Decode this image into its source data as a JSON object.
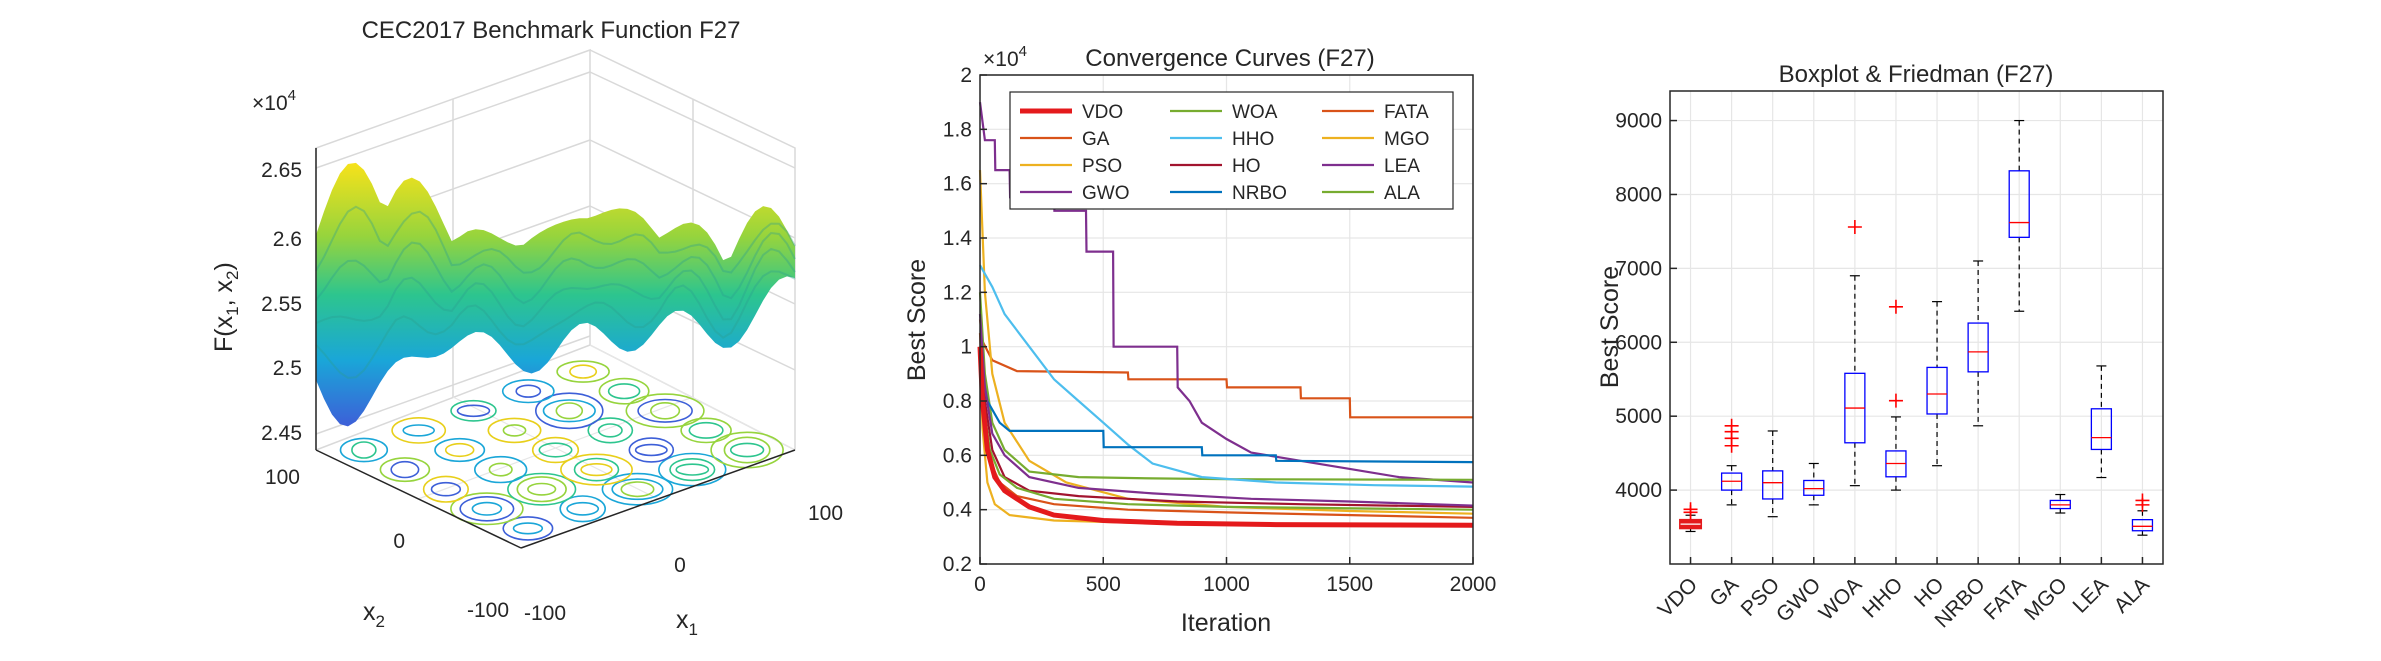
{
  "chart_data": [
    {
      "type": "surface3d",
      "title": "CEC2017 Benchmark Function F27",
      "zlabel_main": "F(x",
      "zlabel_sub1": "1",
      "zlabel_mid": ", x",
      "zlabel_sub2": "2",
      "zlabel_end": ")",
      "exponent_base": "×10",
      "exponent_power": "4",
      "z_ticks": [
        "2.45",
        "2.5",
        "2.55",
        "2.6",
        "2.65"
      ],
      "x2_ticks": [
        "100",
        "0",
        "-100"
      ],
      "x1_ticks": [
        "-100",
        "0",
        "100"
      ],
      "x1_label": "x",
      "x1_label_sub": "1",
      "x2_label": "x",
      "x2_label_sub": "2",
      "zlim": [
        2.45,
        2.65
      ],
      "xlim": [
        -100,
        100
      ]
    },
    {
      "type": "line",
      "title": "Convergence Curves (F27)",
      "xlabel": "Iteration",
      "ylabel": "Best Score",
      "exponent_base": "×10",
      "exponent_power": "4",
      "xlim": [
        0,
        2000
      ],
      "ylim": [
        0.2,
        2
      ],
      "x_ticks": [
        "0",
        "500",
        "1000",
        "1500",
        "2000"
      ],
      "y_ticks": [
        "0.2",
        "0.4",
        "0.6",
        "0.8",
        "1",
        "1.2",
        "1.4",
        "1.6",
        "1.8",
        "2"
      ],
      "series": [
        {
          "name": "VDO",
          "color": "#e41a1c",
          "points": [
            [
              0,
              1.0
            ],
            [
              10,
              0.8
            ],
            [
              30,
              0.62
            ],
            [
              60,
              0.52
            ],
            [
              100,
              0.47
            ],
            [
              200,
              0.41
            ],
            [
              300,
              0.38
            ],
            [
              500,
              0.36
            ],
            [
              800,
              0.35
            ],
            [
              1200,
              0.345
            ],
            [
              2000,
              0.343
            ]
          ]
        },
        {
          "name": "GA",
          "color": "#d95319",
          "points": [
            [
              0,
              1.1
            ],
            [
              10,
              1.02
            ],
            [
              50,
              0.95
            ],
            [
              150,
              0.91
            ],
            [
              600,
              0.905
            ],
            [
              602,
              0.88
            ],
            [
              1000,
              0.88
            ],
            [
              1002,
              0.85
            ],
            [
              1300,
              0.85
            ],
            [
              1302,
              0.81
            ],
            [
              1500,
              0.81
            ],
            [
              1502,
              0.74
            ],
            [
              2000,
              0.74
            ]
          ]
        },
        {
          "name": "PSO",
          "color": "#edb120",
          "points": [
            [
              0,
              1.65
            ],
            [
              20,
              1.2
            ],
            [
              50,
              0.9
            ],
            [
              100,
              0.72
            ],
            [
              200,
              0.58
            ],
            [
              350,
              0.5
            ],
            [
              600,
              0.44
            ],
            [
              1000,
              0.41
            ],
            [
              1500,
              0.395
            ],
            [
              2000,
              0.385
            ]
          ]
        },
        {
          "name": "GWO",
          "color": "#7e2f8e",
          "points": [
            [
              0,
              1.9
            ],
            [
              20,
              1.76
            ],
            [
              60,
              1.76
            ],
            [
              62,
              1.65
            ],
            [
              120,
              1.65
            ],
            [
              122,
              1.55
            ],
            [
              300,
              1.55
            ],
            [
              302,
              1.5
            ],
            [
              430,
              1.5
            ],
            [
              432,
              1.35
            ],
            [
              540,
              1.35
            ],
            [
              542,
              1.0
            ],
            [
              800,
              1.0
            ],
            [
              802,
              0.85
            ],
            [
              850,
              0.8
            ],
            [
              900,
              0.72
            ],
            [
              1000,
              0.66
            ],
            [
              1100,
              0.61
            ],
            [
              1300,
              0.58
            ],
            [
              1500,
              0.55
            ],
            [
              1700,
              0.52
            ],
            [
              2000,
              0.5
            ]
          ]
        },
        {
          "name": "WOA",
          "color": "#77ac30",
          "points": [
            [
              0,
              1.2
            ],
            [
              20,
              0.9
            ],
            [
              50,
              0.72
            ],
            [
              100,
              0.62
            ],
            [
              200,
              0.54
            ],
            [
              400,
              0.52
            ],
            [
              700,
              0.515
            ],
            [
              1000,
              0.512
            ],
            [
              2000,
              0.51
            ]
          ]
        },
        {
          "name": "HHO",
          "color": "#4dbeee",
          "points": [
            [
              0,
              1.3
            ],
            [
              50,
              1.22
            ],
            [
              100,
              1.12
            ],
            [
              200,
              1.0
            ],
            [
              300,
              0.88
            ],
            [
              400,
              0.8
            ],
            [
              500,
              0.72
            ],
            [
              600,
              0.64
            ],
            [
              700,
              0.57
            ],
            [
              900,
              0.52
            ],
            [
              1200,
              0.5
            ],
            [
              1600,
              0.49
            ],
            [
              2000,
              0.485
            ]
          ]
        },
        {
          "name": "HO",
          "color": "#a2142f",
          "points": [
            [
              0,
              1.0
            ],
            [
              20,
              0.8
            ],
            [
              50,
              0.62
            ],
            [
              100,
              0.52
            ],
            [
              200,
              0.47
            ],
            [
              400,
              0.45
            ],
            [
              800,
              0.43
            ],
            [
              1300,
              0.42
            ],
            [
              2000,
              0.41
            ]
          ]
        },
        {
          "name": "NRBO",
          "color": "#0072bd",
          "points": [
            [
              0,
              0.95
            ],
            [
              30,
              0.8
            ],
            [
              80,
              0.72
            ],
            [
              120,
              0.69
            ],
            [
              500,
              0.69
            ],
            [
              502,
              0.63
            ],
            [
              900,
              0.63
            ],
            [
              902,
              0.6
            ],
            [
              1200,
              0.6
            ],
            [
              1202,
              0.58
            ],
            [
              2000,
              0.575
            ]
          ]
        },
        {
          "name": "FATA",
          "color": "#d95319",
          "points": [
            [
              0,
              1.05
            ],
            [
              15,
              0.75
            ],
            [
              40,
              0.58
            ],
            [
              80,
              0.5
            ],
            [
              150,
              0.45
            ],
            [
              300,
              0.42
            ],
            [
              600,
              0.4
            ],
            [
              1000,
              0.39
            ],
            [
              2000,
              0.37
            ]
          ]
        },
        {
          "name": "MGO",
          "color": "#edb120",
          "points": [
            [
              0,
              1.0
            ],
            [
              10,
              0.7
            ],
            [
              30,
              0.5
            ],
            [
              60,
              0.42
            ],
            [
              120,
              0.38
            ],
            [
              300,
              0.36
            ],
            [
              700,
              0.35
            ],
            [
              2000,
              0.345
            ]
          ]
        },
        {
          "name": "LEA",
          "color": "#7e2f8e",
          "points": [
            [
              0,
              1.12
            ],
            [
              20,
              0.85
            ],
            [
              50,
              0.68
            ],
            [
              100,
              0.6
            ],
            [
              200,
              0.52
            ],
            [
              400,
              0.48
            ],
            [
              700,
              0.46
            ],
            [
              1100,
              0.44
            ],
            [
              1500,
              0.43
            ],
            [
              2000,
              0.415
            ]
          ]
        },
        {
          "name": "ALA",
          "color": "#77ac30",
          "points": [
            [
              0,
              1.0
            ],
            [
              15,
              0.78
            ],
            [
              40,
              0.62
            ],
            [
              80,
              0.53
            ],
            [
              150,
              0.48
            ],
            [
              300,
              0.44
            ],
            [
              600,
              0.42
            ],
            [
              1000,
              0.41
            ],
            [
              2000,
              0.4
            ]
          ]
        }
      ]
    },
    {
      "type": "boxplot",
      "title": "Boxplot & Friedman (F27)",
      "ylabel": "Best Score",
      "ylim": [
        3000,
        9400
      ],
      "y_ticks": [
        "4000",
        "5000",
        "6000",
        "7000",
        "8000",
        "9000"
      ],
      "categories": [
        "VDO",
        "GA",
        "PSO",
        "GWO",
        "WOA",
        "HHO",
        "HO",
        "NRBO",
        "FATA",
        "MGO",
        "LEA",
        "ALA"
      ],
      "boxes": [
        {
          "name": "VDO",
          "min": 3440,
          "q1": 3490,
          "median": 3540,
          "q3": 3590,
          "max": 3660,
          "outliers": [
            3700,
            3740
          ]
        },
        {
          "name": "GA",
          "min": 3800,
          "q1": 4000,
          "median": 4120,
          "q3": 4230,
          "max": 4330,
          "outliers": [
            4600,
            4700,
            4790,
            4870
          ]
        },
        {
          "name": "PSO",
          "min": 3640,
          "q1": 3880,
          "median": 4100,
          "q3": 4260,
          "max": 4800,
          "outliers": []
        },
        {
          "name": "GWO",
          "min": 3800,
          "q1": 3930,
          "median": 4020,
          "q3": 4130,
          "max": 4360,
          "outliers": []
        },
        {
          "name": "WOA",
          "min": 4060,
          "q1": 4640,
          "median": 5110,
          "q3": 5580,
          "max": 6900,
          "outliers": [
            7560
          ]
        },
        {
          "name": "HHO",
          "min": 4000,
          "q1": 4180,
          "median": 4360,
          "q3": 4530,
          "max": 4990,
          "outliers": [
            5210,
            6480
          ]
        },
        {
          "name": "HO",
          "min": 4330,
          "q1": 5030,
          "median": 5300,
          "q3": 5660,
          "max": 6550,
          "outliers": []
        },
        {
          "name": "NRBO",
          "min": 4870,
          "q1": 5600,
          "median": 5870,
          "q3": 6260,
          "max": 7100,
          "outliers": []
        },
        {
          "name": "FATA",
          "min": 6420,
          "q1": 7420,
          "median": 7620,
          "q3": 8320,
          "max": 9000,
          "outliers": []
        },
        {
          "name": "MGO",
          "min": 3690,
          "q1": 3750,
          "median": 3800,
          "q3": 3860,
          "max": 3940,
          "outliers": []
        },
        {
          "name": "LEA",
          "min": 4170,
          "q1": 4550,
          "median": 4710,
          "q3": 5100,
          "max": 5680,
          "outliers": []
        },
        {
          "name": "ALA",
          "min": 3390,
          "q1": 3450,
          "median": 3510,
          "q3": 3600,
          "max": 3720,
          "outliers": [
            3800,
            3860
          ]
        }
      ]
    }
  ]
}
